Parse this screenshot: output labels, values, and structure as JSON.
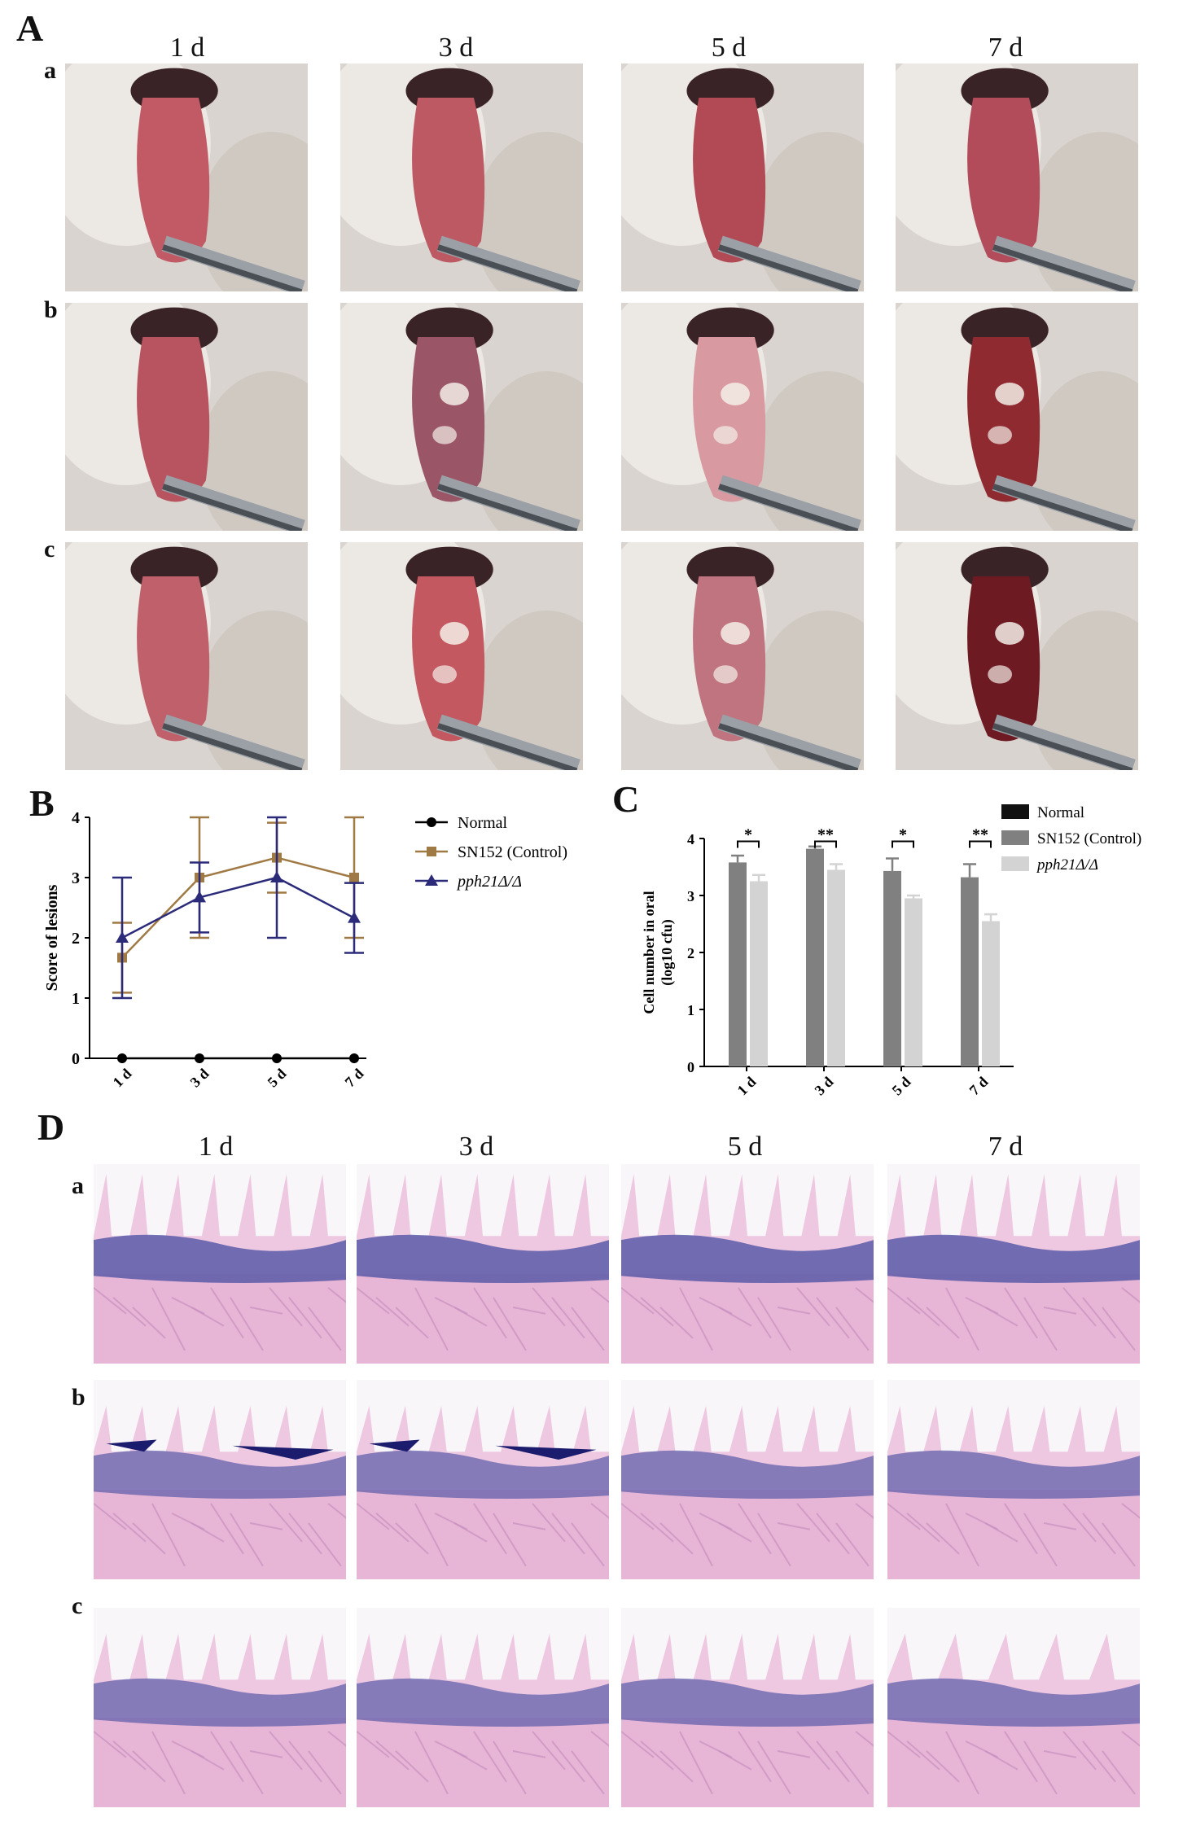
{
  "figure": {
    "panel_labels": {
      "A": "A",
      "B": "B",
      "C": "C",
      "D": "D"
    },
    "row_labels": [
      "a",
      "b",
      "c"
    ],
    "days": [
      "1 d",
      "3 d",
      "5 d",
      "7 d"
    ]
  },
  "chart_data": [
    {
      "type": "line",
      "panel": "B",
      "ylabel": "Score of lesions",
      "xlabel": "",
      "categories": [
        "1 d",
        "3 d",
        "5 d",
        "7 d"
      ],
      "ylim": [
        0,
        4
      ],
      "yticks": [
        "0",
        "1",
        "2",
        "3",
        "4"
      ],
      "legend_position": "right",
      "series": [
        {
          "name": "Normal",
          "marker": "circle",
          "color": "#000000",
          "values": [
            0,
            0,
            0,
            0
          ],
          "error": [
            0,
            0,
            0,
            0
          ]
        },
        {
          "name": "SN152 (Control)",
          "marker": "square",
          "color": "#a07a45",
          "values": [
            1.67,
            3.0,
            3.33,
            3.0
          ],
          "error": [
            0.58,
            1.0,
            0.58,
            1.0
          ]
        },
        {
          "name": "pph21Δ/Δ",
          "marker": "triangle",
          "color": "#2b2b7a",
          "italic_name": true,
          "values": [
            2.0,
            2.67,
            3.0,
            2.33
          ],
          "error": [
            1.0,
            0.58,
            1.0,
            0.58
          ]
        }
      ]
    },
    {
      "type": "bar",
      "panel": "C",
      "ylabel": "Cell number in oral (log10 cfu)",
      "ylabel_lines": [
        "Cell number in oral",
        "(log10 cfu)"
      ],
      "xlabel": "",
      "categories": [
        "1 d",
        "3 d",
        "5 d",
        "7 d"
      ],
      "ylim": [
        0,
        4
      ],
      "yticks": [
        "0",
        "1",
        "2",
        "3",
        "4"
      ],
      "legend_position": "right",
      "series": [
        {
          "name": "Normal",
          "color": "#111111",
          "values": [
            0,
            0,
            0,
            0
          ],
          "error": [
            0,
            0,
            0,
            0
          ]
        },
        {
          "name": "SN152 (Control)",
          "color": "#808080",
          "values": [
            3.58,
            3.82,
            3.43,
            3.32
          ],
          "error": [
            0.12,
            0.04,
            0.22,
            0.23
          ]
        },
        {
          "name": "pph21Δ/Δ",
          "color": "#d3d3d3",
          "italic_name": true,
          "values": [
            3.25,
            3.45,
            2.95,
            2.55
          ],
          "error": [
            0.11,
            0.1,
            0.05,
            0.12
          ]
        }
      ],
      "significance": [
        "*",
        "**",
        "*",
        "**"
      ]
    }
  ],
  "colors": {
    "tongue": "#b8545f",
    "fur": "#d9d4cf",
    "he_stain_pink": "#e7b6d6",
    "he_stain_purple": "#5a5aa8"
  }
}
